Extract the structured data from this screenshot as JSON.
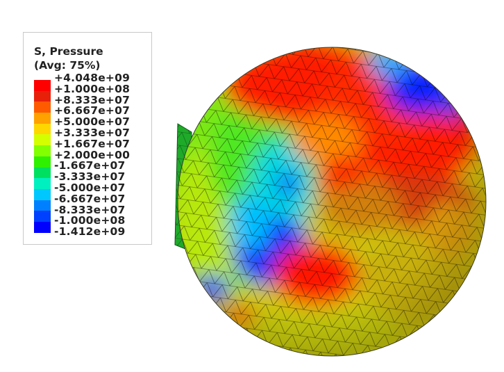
{
  "legend": {
    "title": "S, Pressure",
    "subtitle": "(Avg: 75%)",
    "levels": [
      {
        "label": "+4.048e+09",
        "color": "#ff0000"
      },
      {
        "label": "+1.000e+08",
        "color": "#e8200a"
      },
      {
        "label": "+8.333e+07",
        "color": "#ff5a00"
      },
      {
        "label": "+6.667e+07",
        "color": "#ffa200"
      },
      {
        "label": "+5.000e+07",
        "color": "#ffd700"
      },
      {
        "label": "+3.333e+07",
        "color": "#d4ff00"
      },
      {
        "label": "+1.667e+07",
        "color": "#82ff00"
      },
      {
        "label": "+2.000e+00",
        "color": "#2ff000"
      },
      {
        "label": "-1.667e+07",
        "color": "#00e060"
      },
      {
        "label": "-3.333e+07",
        "color": "#00f0c0"
      },
      {
        "label": "-5.000e+07",
        "color": "#00c8ff"
      },
      {
        "label": "-6.667e+07",
        "color": "#0080ff"
      },
      {
        "label": "-8.333e+07",
        "color": "#0040ff"
      },
      {
        "label": "-1.000e+08",
        "color": "#0000ff"
      }
    ],
    "bottom_label": "-1.412e+09"
  }
}
